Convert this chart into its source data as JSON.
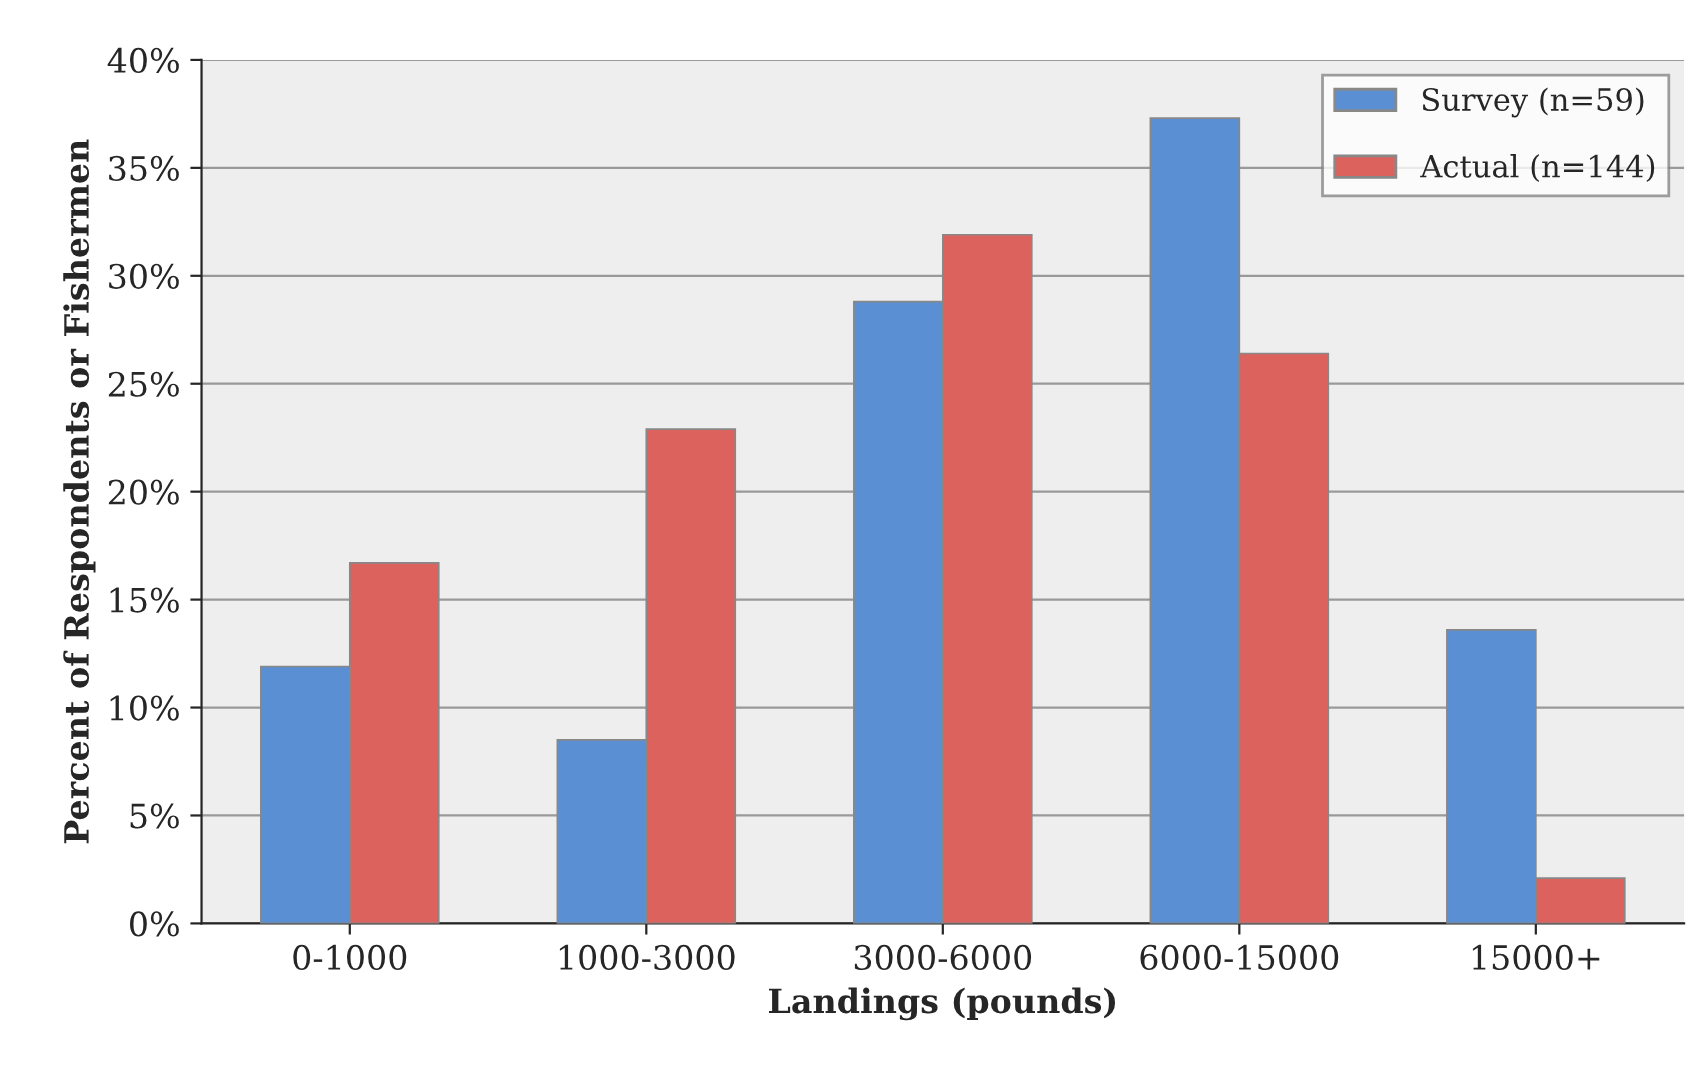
{
  "chart_data": {
    "type": "bar",
    "xlabel": "Landings (pounds)",
    "ylabel": "Percent of Respondents or Fishermen",
    "categories": [
      "0-1000",
      "1000-3000",
      "3000-6000",
      "6000-15000",
      "15000+"
    ],
    "series": [
      {
        "name": "Survey (n=59)",
        "color": "#5b8fd3",
        "values": [
          11.9,
          8.5,
          28.8,
          37.3,
          13.6
        ]
      },
      {
        "name": "Actual (n=144)",
        "color": "#dc625e",
        "values": [
          16.7,
          22.9,
          31.9,
          26.4,
          2.1
        ]
      }
    ],
    "ylim": [
      0,
      40
    ],
    "yticks": [
      {
        "value": 0,
        "label": "0%"
      },
      {
        "value": 5,
        "label": "5%"
      },
      {
        "value": 10,
        "label": "10%"
      },
      {
        "value": 15,
        "label": "15%"
      },
      {
        "value": 20,
        "label": "20%"
      },
      {
        "value": 25,
        "label": "25%"
      },
      {
        "value": 30,
        "label": "30%"
      },
      {
        "value": 35,
        "label": "35%"
      },
      {
        "value": 40,
        "label": "40%"
      }
    ],
    "grid": "y",
    "legend": "top right"
  }
}
